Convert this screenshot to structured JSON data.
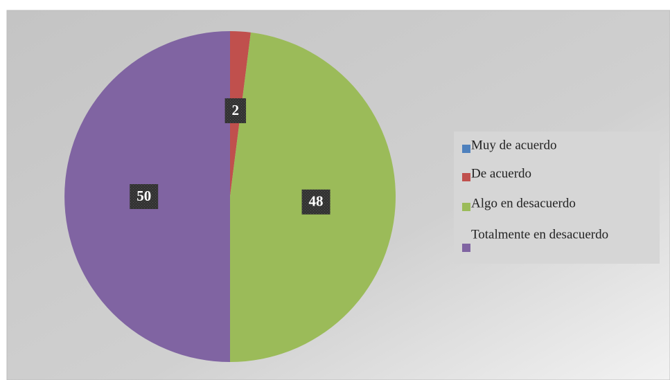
{
  "chart_data": {
    "type": "pie",
    "categories": [
      "Muy de acuerdo",
      "De acuerdo",
      "Algo en desacuerdo",
      "Totalmente en desacuerdo"
    ],
    "values": [
      0,
      2,
      48,
      50
    ],
    "colors": [
      "#4f81bd",
      "#c0504d",
      "#9bbb59",
      "#8064a2"
    ],
    "legend": "right"
  }
}
